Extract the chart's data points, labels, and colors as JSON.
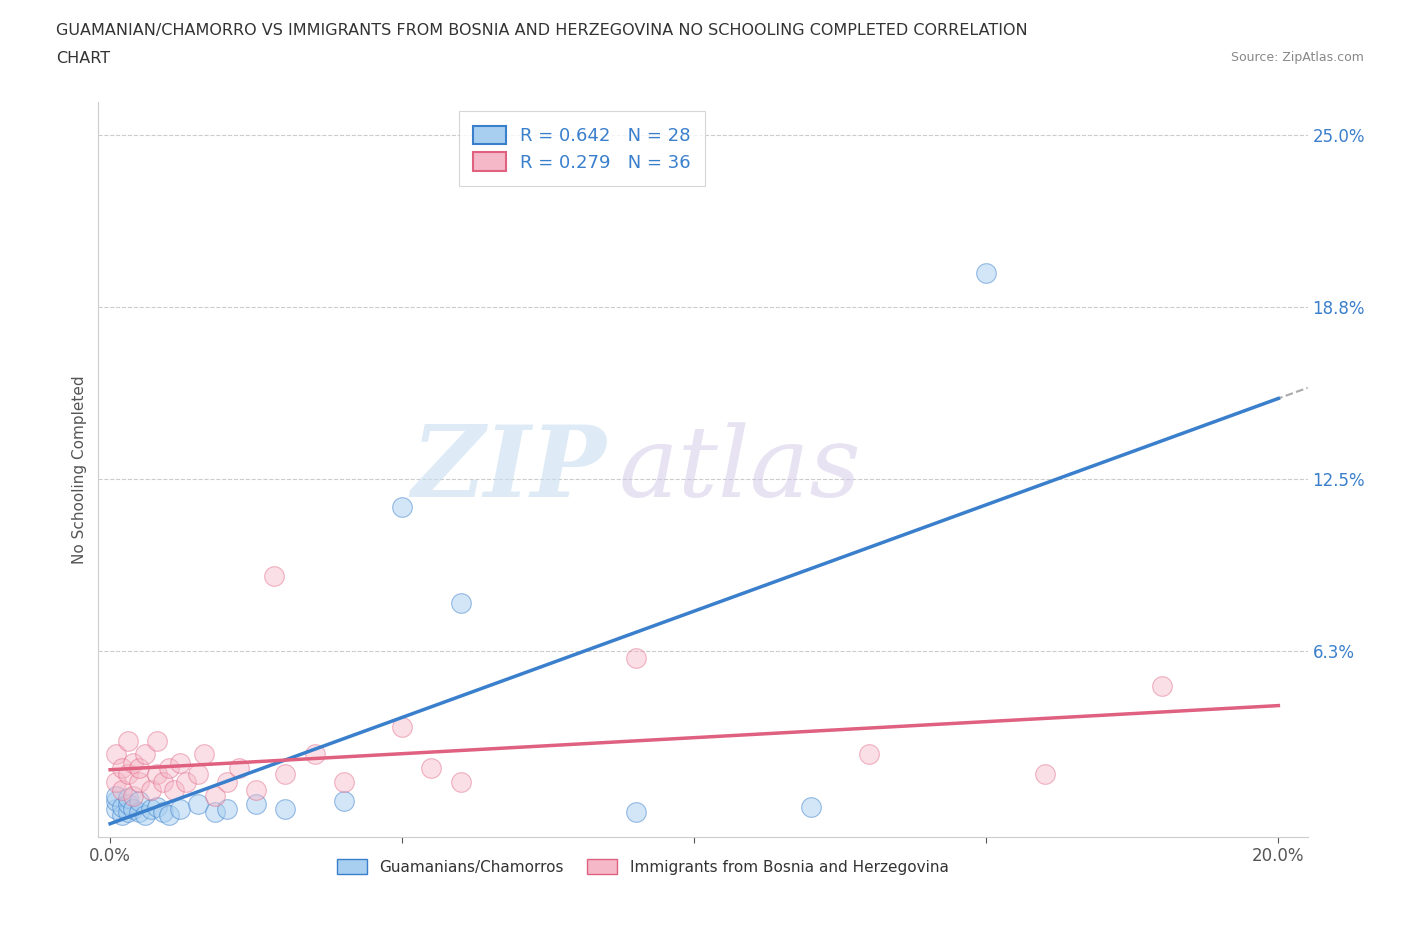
{
  "title_line1": "GUAMANIAN/CHAMORRO VS IMMIGRANTS FROM BOSNIA AND HERZEGOVINA NO SCHOOLING COMPLETED CORRELATION",
  "title_line2": "CHART",
  "source": "Source: ZipAtlas.com",
  "ylabel": "No Schooling Completed",
  "xlim": [
    -0.002,
    0.205
  ],
  "ylim": [
    -0.005,
    0.262
  ],
  "xtick_left_label": "0.0%",
  "xtick_right_label": "20.0%",
  "xtick_left_val": 0.0,
  "xtick_right_val": 0.2,
  "yticks": [
    0.0,
    0.0625,
    0.125,
    0.1875,
    0.25
  ],
  "yticklabels": [
    "",
    "6.3%",
    "12.5%",
    "18.8%",
    "25.0%"
  ],
  "blue_color": "#a8cff0",
  "pink_color": "#f5b8c8",
  "blue_line_color": "#3a7fcc",
  "pink_line_color": "#e06080",
  "gray_dash_color": "#aaaaaa",
  "blue_R": 0.642,
  "blue_N": 28,
  "pink_R": 0.279,
  "pink_N": 36,
  "legend_label_blue": "Guamanians/Chamorros",
  "legend_label_pink": "Immigrants from Bosnia and Herzegovina",
  "watermark_zip": "ZIP",
  "watermark_atlas": "atlas",
  "background_color": "#ffffff",
  "blue_scatter_x": [
    0.001,
    0.001,
    0.001,
    0.002,
    0.002,
    0.003,
    0.003,
    0.003,
    0.004,
    0.005,
    0.005,
    0.006,
    0.007,
    0.008,
    0.009,
    0.01,
    0.012,
    0.015,
    0.018,
    0.02,
    0.025,
    0.03,
    0.04,
    0.05,
    0.06,
    0.09,
    0.12,
    0.15
  ],
  "blue_scatter_y": [
    0.005,
    0.008,
    0.01,
    0.003,
    0.006,
    0.004,
    0.007,
    0.009,
    0.005,
    0.004,
    0.008,
    0.003,
    0.005,
    0.006,
    0.004,
    0.003,
    0.005,
    0.007,
    0.004,
    0.005,
    0.007,
    0.005,
    0.008,
    0.115,
    0.08,
    0.004,
    0.006,
    0.2
  ],
  "pink_scatter_x": [
    0.001,
    0.001,
    0.002,
    0.002,
    0.003,
    0.003,
    0.004,
    0.004,
    0.005,
    0.005,
    0.006,
    0.007,
    0.008,
    0.008,
    0.009,
    0.01,
    0.011,
    0.012,
    0.013,
    0.015,
    0.016,
    0.018,
    0.02,
    0.022,
    0.025,
    0.028,
    0.03,
    0.035,
    0.04,
    0.05,
    0.055,
    0.06,
    0.09,
    0.13,
    0.16,
    0.18
  ],
  "pink_scatter_y": [
    0.015,
    0.025,
    0.012,
    0.02,
    0.018,
    0.03,
    0.022,
    0.01,
    0.015,
    0.02,
    0.025,
    0.012,
    0.018,
    0.03,
    0.015,
    0.02,
    0.012,
    0.022,
    0.015,
    0.018,
    0.025,
    0.01,
    0.015,
    0.02,
    0.012,
    0.09,
    0.018,
    0.025,
    0.015,
    0.035,
    0.02,
    0.015,
    0.06,
    0.025,
    0.018,
    0.05
  ]
}
